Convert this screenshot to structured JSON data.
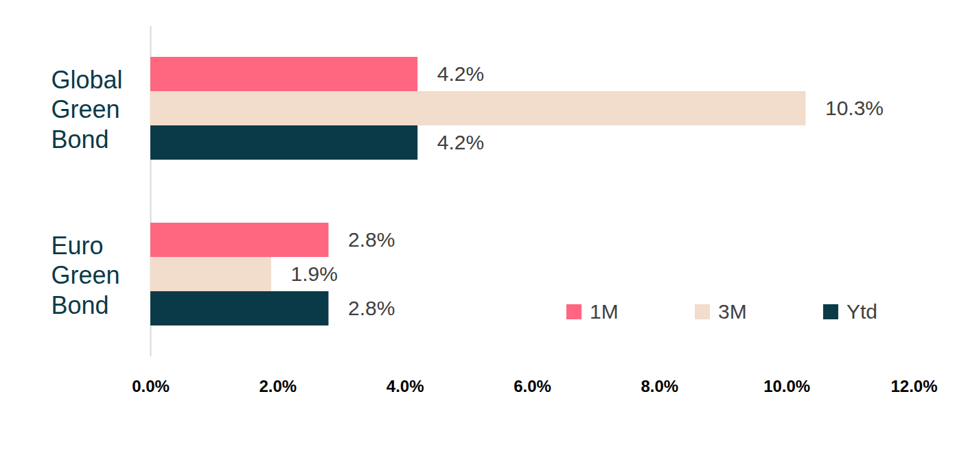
{
  "chart_data": {
    "type": "bar",
    "orientation": "horizontal",
    "categories": [
      "Global Green Bond",
      "Euro Green Bond"
    ],
    "series": [
      {
        "name": "1M",
        "color": "#ff6680",
        "values": [
          4.2,
          2.8
        ],
        "value_labels": [
          "4.2%",
          "2.8%"
        ]
      },
      {
        "name": "3M",
        "color": "#f2dccb",
        "values": [
          10.3,
          1.9
        ],
        "value_labels": [
          "10.3%",
          "1.9%"
        ]
      },
      {
        "name": "Ytd",
        "color": "#0a3a47",
        "values": [
          4.2,
          2.8
        ],
        "value_labels": [
          "4.2%",
          "2.8%"
        ]
      }
    ],
    "xlim": [
      0,
      12
    ],
    "xticks": [
      {
        "value": 0,
        "label": "0.0%"
      },
      {
        "value": 2,
        "label": "2.0%"
      },
      {
        "value": 4,
        "label": "4.0%"
      },
      {
        "value": 6,
        "label": "6.0%"
      },
      {
        "value": 8,
        "label": "8.0%"
      },
      {
        "value": 10,
        "label": "10.0%"
      },
      {
        "value": 12,
        "label": "12.0%"
      }
    ],
    "grid": false,
    "data_labels": true,
    "legend": "lower right"
  }
}
